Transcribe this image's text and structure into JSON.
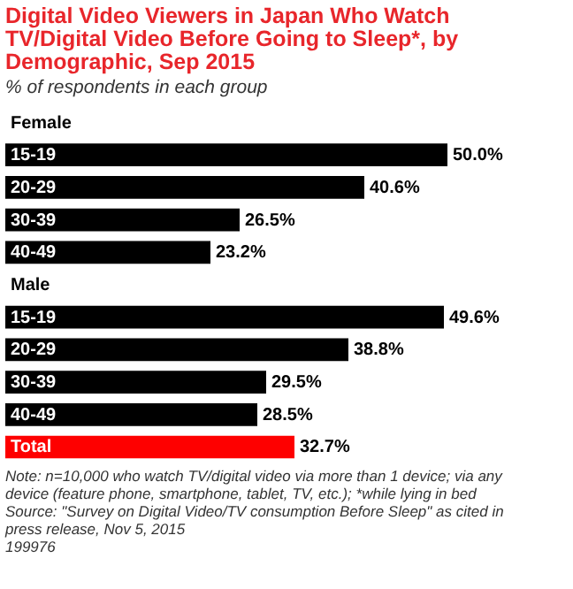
{
  "chart_data": {
    "type": "bar",
    "orientation": "horizontal",
    "title": "Digital Video Viewers in Japan Who Watch TV/Digital Video Before Going to Sleep*, by Demographic, Sep 2015",
    "subtitle": "% of respondents in each group",
    "categories": [
      "Female",
      "15-19",
      "20-29",
      "30-39",
      "40-49",
      "Male",
      "15-19",
      "20-29",
      "30-39",
      "40-49",
      "Total"
    ],
    "values": [
      null,
      50.0,
      40.6,
      26.5,
      23.2,
      null,
      49.6,
      38.8,
      29.5,
      28.5,
      32.7
    ],
    "colors": [
      null,
      "#000000",
      "#000000",
      "#000000",
      "#000000",
      null,
      "#000000",
      "#000000",
      "#000000",
      "#000000",
      "#fe0000"
    ],
    "value_labels": [
      null,
      "50.0%",
      "40.6%",
      "26.5%",
      "23.2%",
      null,
      "49.6%",
      "38.8%",
      "29.5%",
      "28.5%",
      "32.7%"
    ],
    "annotations": [
      "Note: n=10,000 who watch TV/digital video via more than 1 device; via any device (feature phone, smartphone, tablet, TV, etc.); *while lying in bed",
      "Source: \"Survey on Digital Video/TV consumption Before Sleep\" as cited in press release, Nov 5, 2015",
      "199976"
    ]
  }
}
